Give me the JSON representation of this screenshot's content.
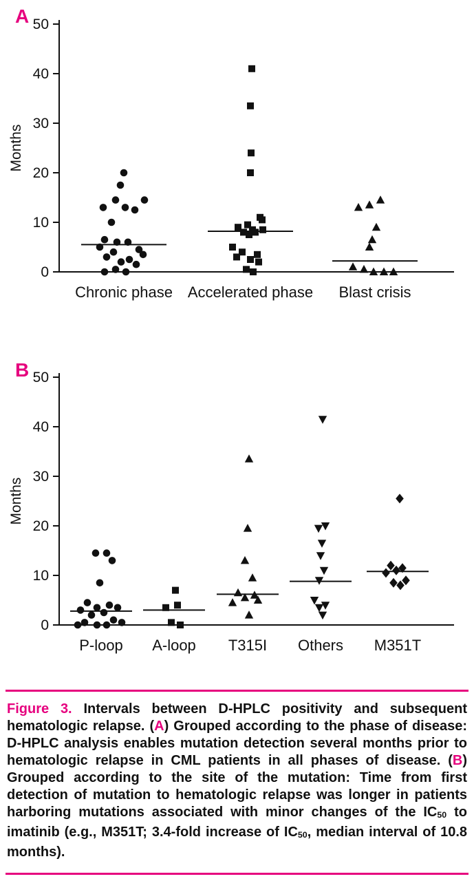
{
  "colors": {
    "accent": "#e6007e",
    "ink": "#111111",
    "background": "#ffffff"
  },
  "chart_data": [
    {
      "type": "scatter",
      "panel_label": "A",
      "ylabel": "Months",
      "ylim": [
        0,
        50
      ],
      "yticks": [
        0,
        10,
        20,
        30,
        40,
        50
      ],
      "grid": false,
      "legend": "none",
      "categories": [
        "Chronic phase",
        "Accelerated phase",
        "Blast crisis"
      ],
      "groups": [
        {
          "label": "Chronic phase",
          "marker": "circle",
          "median": 5.5,
          "points": [
            [
              0,
              20
            ],
            [
              -5,
              17.5
            ],
            [
              -12,
              14.5
            ],
            [
              30,
              14.5
            ],
            [
              -30,
              13
            ],
            [
              2,
              13
            ],
            [
              16,
              12.5
            ],
            [
              -18,
              10
            ],
            [
              -28,
              6.5
            ],
            [
              -10,
              6
            ],
            [
              6,
              6
            ],
            [
              -35,
              5
            ],
            [
              22,
              4.5
            ],
            [
              -15,
              4
            ],
            [
              28,
              3.5
            ],
            [
              -25,
              3
            ],
            [
              8,
              2.5
            ],
            [
              -4,
              2
            ],
            [
              18,
              1.5
            ],
            [
              -12,
              0.5
            ],
            [
              3,
              0
            ],
            [
              -28,
              0
            ]
          ]
        },
        {
          "label": "Accelerated phase",
          "marker": "square",
          "median": 8.2,
          "points": [
            [
              2,
              41
            ],
            [
              0,
              33.5
            ],
            [
              1,
              24
            ],
            [
              0,
              20
            ],
            [
              14,
              11
            ],
            [
              17,
              10.5
            ],
            [
              -4,
              9.5
            ],
            [
              -18,
              9
            ],
            [
              3,
              8.5
            ],
            [
              18,
              8.5
            ],
            [
              -10,
              8
            ],
            [
              7,
              8
            ],
            [
              -2,
              7.5
            ],
            [
              -26,
              5
            ],
            [
              -12,
              4
            ],
            [
              10,
              3.5
            ],
            [
              -20,
              3
            ],
            [
              0,
              2.5
            ],
            [
              12,
              2
            ],
            [
              -6,
              0.5
            ],
            [
              4,
              0
            ]
          ]
        },
        {
          "label": "Blast crisis",
          "marker": "triangle-up",
          "median": 2.2,
          "points": [
            [
              8,
              14.5
            ],
            [
              -8,
              13.5
            ],
            [
              -24,
              13
            ],
            [
              2,
              9
            ],
            [
              -4,
              6.5
            ],
            [
              -8,
              5
            ],
            [
              -32,
              1
            ],
            [
              -16,
              0.5
            ],
            [
              -2,
              0
            ],
            [
              13,
              0
            ],
            [
              27,
              0
            ]
          ]
        }
      ]
    },
    {
      "type": "scatter",
      "panel_label": "B",
      "ylabel": "Months",
      "ylim": [
        0,
        50
      ],
      "yticks": [
        0,
        10,
        20,
        30,
        40,
        50
      ],
      "grid": false,
      "legend": "none",
      "categories": [
        "P-loop",
        "A-loop",
        "T315I",
        "Others",
        "M351T"
      ],
      "groups": [
        {
          "label": "P-loop",
          "marker": "circle",
          "median": 2.8,
          "points": [
            [
              -8,
              14.5
            ],
            [
              8,
              14.5
            ],
            [
              16,
              13
            ],
            [
              -2,
              8.5
            ],
            [
              -20,
              4.5
            ],
            [
              12,
              4
            ],
            [
              -6,
              3.5
            ],
            [
              24,
              3.5
            ],
            [
              -30,
              3
            ],
            [
              4,
              2.5
            ],
            [
              -14,
              2
            ],
            [
              18,
              1
            ],
            [
              -24,
              0.5
            ],
            [
              30,
              0.5
            ],
            [
              -6,
              0
            ],
            [
              8,
              0
            ],
            [
              -34,
              0
            ]
          ]
        },
        {
          "label": "A-loop",
          "marker": "square",
          "median": 3,
          "points": [
            [
              2,
              7
            ],
            [
              -12,
              3.5
            ],
            [
              5,
              4
            ],
            [
              -4,
              0.5
            ],
            [
              9,
              0
            ]
          ]
        },
        {
          "label": "T315I",
          "marker": "triangle-up",
          "median": 6.2,
          "points": [
            [
              2,
              33.5
            ],
            [
              0,
              19.5
            ],
            [
              -4,
              13
            ],
            [
              7,
              9.5
            ],
            [
              -14,
              6.5
            ],
            [
              10,
              6
            ],
            [
              -4,
              5.5
            ],
            [
              15,
              5
            ],
            [
              -22,
              4.5
            ],
            [
              2,
              2
            ]
          ]
        },
        {
          "label": "Others",
          "marker": "triangle-down",
          "median": 8.8,
          "points": [
            [
              3,
              41.5
            ],
            [
              7,
              20
            ],
            [
              -3,
              19.5
            ],
            [
              2,
              16.5
            ],
            [
              0,
              14
            ],
            [
              5,
              11
            ],
            [
              -2,
              9
            ],
            [
              -9,
              5
            ],
            [
              7,
              4
            ],
            [
              -2,
              3.5
            ],
            [
              3,
              2
            ]
          ]
        },
        {
          "label": "M351T",
          "marker": "diamond",
          "median": 10.8,
          "points": [
            [
              3,
              25.5
            ],
            [
              -10,
              12
            ],
            [
              7,
              11.5
            ],
            [
              -2,
              11
            ],
            [
              -17,
              10.5
            ],
            [
              12,
              9
            ],
            [
              -6,
              8.5
            ],
            [
              4,
              8
            ]
          ]
        }
      ]
    }
  ],
  "caption": {
    "segments": [
      {
        "t": "Figure 3.",
        "c": "accent"
      },
      {
        "t": " Intervals between D-HPLC positivity and subsequent hematologic relapse. ("
      },
      {
        "t": "A",
        "c": "accent"
      },
      {
        "t": ") Grouped according to the phase of disease: D-HPLC analysis enables mutation detection several months prior to hematologic relapse in CML patients in all phases of disease. ("
      },
      {
        "t": "B",
        "c": "accent"
      },
      {
        "t": ") Grouped according to the site of the mutation: Time from first detection of mutation to hematologic relapse was longer in patients harboring mutations associated with minor changes of the IC"
      },
      {
        "t": "50",
        "c": "sub"
      },
      {
        "t": " to imatinib (e.g., M351T; 3.4-fold increase of IC"
      },
      {
        "t": "50",
        "c": "sub"
      },
      {
        "t": ", median interval of 10.8 months)."
      }
    ]
  }
}
